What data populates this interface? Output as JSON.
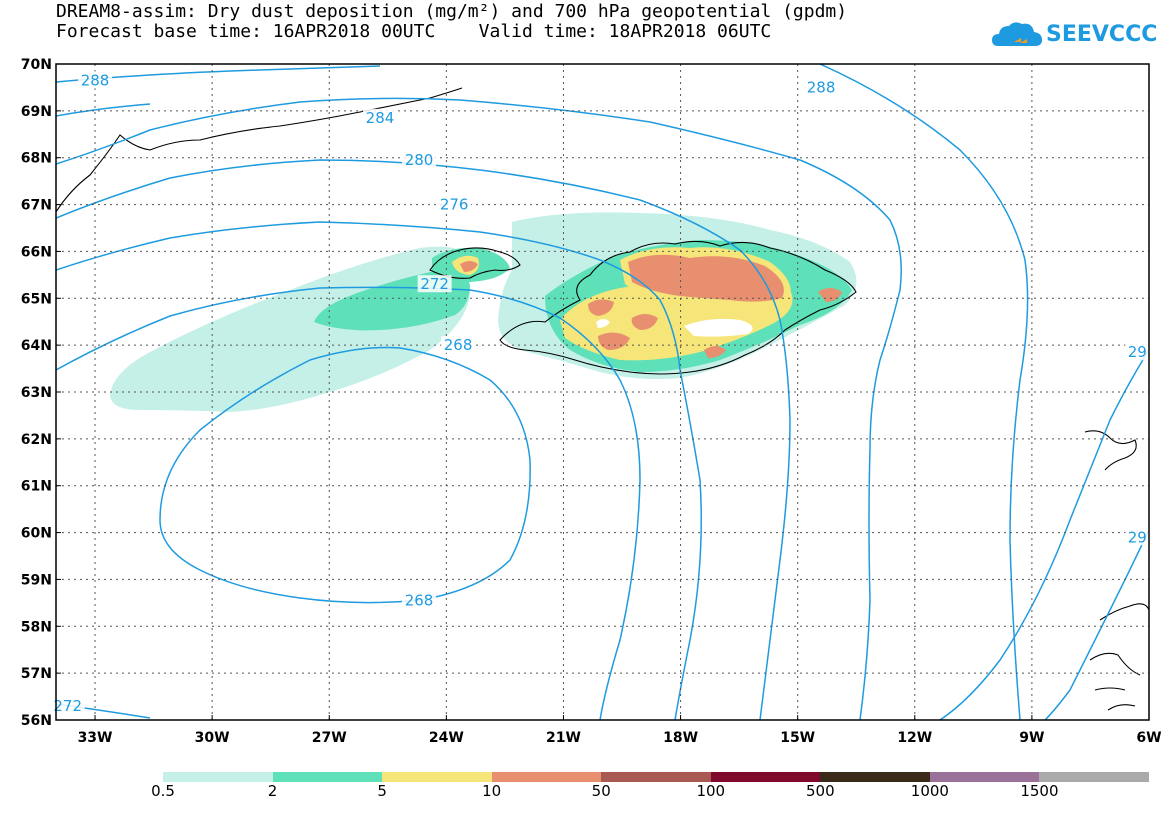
{
  "title_line1": "DREAM8-assim: Dry dust deposition (mg/m²) and 700 hPa geopotential (gpdm)",
  "title_line2": "Forecast base time: 16APR2018 00UTC    Valid time: 18APR2018 06UTC",
  "logo_text": "SEEVCCC",
  "map": {
    "lon_range": [
      -34,
      -6
    ],
    "lat_range": [
      56,
      70
    ],
    "lat_labels": [
      "70N",
      "69N",
      "68N",
      "67N",
      "66N",
      "65N",
      "64N",
      "63N",
      "62N",
      "61N",
      "60N",
      "59N",
      "58N",
      "57N",
      "56N"
    ],
    "lon_labels": [
      "33W",
      "30W",
      "27W",
      "24W",
      "21W",
      "18W",
      "15W",
      "12W",
      "9W",
      "6W"
    ],
    "contour_labels": [
      {
        "text": "288",
        "lon": -33.0,
        "lat": 69.65
      },
      {
        "text": "284",
        "lon": -25.7,
        "lat": 68.85
      },
      {
        "text": "280",
        "lon": -24.7,
        "lat": 67.95
      },
      {
        "text": "276",
        "lon": -23.8,
        "lat": 67.0
      },
      {
        "text": "272",
        "lon": -24.3,
        "lat": 65.3
      },
      {
        "text": "268",
        "lon": -23.7,
        "lat": 64.0
      },
      {
        "text": "268",
        "lon": -24.7,
        "lat": 58.55
      },
      {
        "text": "272",
        "lon": -33.7,
        "lat": 56.3
      },
      {
        "text": "288",
        "lon": -14.4,
        "lat": 69.5
      },
      {
        "text": "29",
        "lon": -6.3,
        "lat": 63.85
      },
      {
        "text": "29",
        "lon": -6.3,
        "lat": 59.9
      }
    ]
  },
  "legend": {
    "colors": [
      "#c4f0e8",
      "#5ee0b8",
      "#f6e67a",
      "#e88f6f",
      "#a85a52",
      "#7f0a2c",
      "#3b2a1a",
      "#9a7198",
      "#aaaaaa"
    ],
    "labels": [
      "0.5",
      "2",
      "5",
      "10",
      "50",
      "100",
      "500",
      "1000",
      "1500"
    ]
  }
}
